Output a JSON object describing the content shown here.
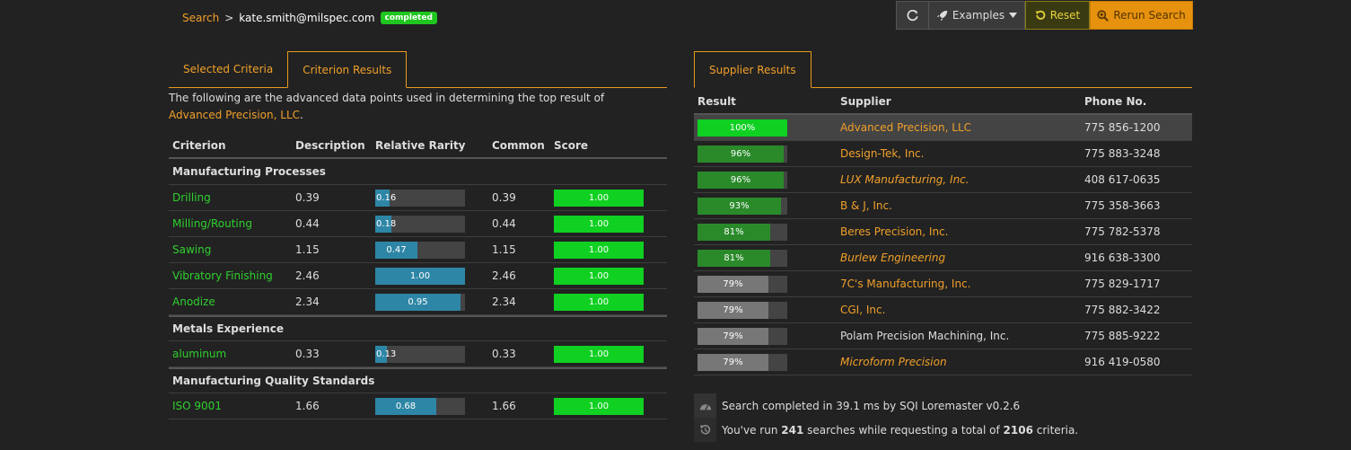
{
  "breadcrumb": {
    "root": "Search",
    "separator": ">",
    "user": "kate.smith@milspec.com",
    "status": "completed"
  },
  "toolbar": {
    "refresh_icon": "refresh-icon",
    "examples_label": "Examples",
    "reset_label": "Reset",
    "rerun_label": "Rerun Search"
  },
  "left_tabs": [
    {
      "label": "Selected Criteria"
    },
    {
      "label": "Criterion Results"
    }
  ],
  "intro": {
    "text": "The following are the advanced data points used in determining the top result of ",
    "highlight": "Advanced Precision, LLC",
    "end": "."
  },
  "criteria": {
    "headers": [
      "Criterion",
      "Description",
      "Relative Rarity",
      "Common",
      "Score"
    ],
    "groups": [
      {
        "name": "Manufacturing Processes",
        "rows": [
          {
            "criterion": "Drilling",
            "description": "0.39",
            "rarity": 0.16,
            "rarity_label": "0.16",
            "common": "0.39",
            "score": "1.00"
          },
          {
            "criterion": "Milling/Routing",
            "description": "0.44",
            "rarity": 0.18,
            "rarity_label": "0.18",
            "common": "0.44",
            "score": "1.00"
          },
          {
            "criterion": "Sawing",
            "description": "1.15",
            "rarity": 0.47,
            "rarity_label": "0.47",
            "common": "1.15",
            "score": "1.00"
          },
          {
            "criterion": "Vibratory Finishing",
            "description": "2.46",
            "rarity": 1.0,
            "rarity_label": "1.00",
            "common": "2.46",
            "score": "1.00"
          },
          {
            "criterion": "Anodize",
            "description": "2.34",
            "rarity": 0.95,
            "rarity_label": "0.95",
            "common": "2.34",
            "score": "1.00"
          }
        ]
      },
      {
        "name": "Metals Experience",
        "rows": [
          {
            "criterion": "aluminum",
            "description": "0.33",
            "rarity": 0.13,
            "rarity_label": "0.13",
            "common": "0.33",
            "score": "1.00"
          }
        ]
      },
      {
        "name": "Manufacturing Quality Standards",
        "rows": [
          {
            "criterion": "ISO 9001",
            "description": "1.66",
            "rarity": 0.68,
            "rarity_label": "0.68",
            "common": "1.66",
            "score": "1.00"
          }
        ]
      }
    ]
  },
  "right_tabs": [
    {
      "label": "Supplier Results"
    }
  ],
  "suppliers": {
    "headers": [
      "Result",
      "Supplier",
      "Phone No."
    ],
    "rows": [
      {
        "result": 100,
        "result_label": "100%",
        "name": "Advanced Precision, LLC",
        "phone": "775 856-1200",
        "color": "#10d022",
        "style": "link",
        "selected": true
      },
      {
        "result": 96,
        "result_label": "96%",
        "name": "Design-Tek, Inc.",
        "phone": "775 883-3248",
        "color": "#2a8a2a",
        "style": "link"
      },
      {
        "result": 96,
        "result_label": "96%",
        "name": "LUX Manufacturing, Inc.",
        "phone": "408 617-0635",
        "color": "#2a8a2a",
        "style": "italic"
      },
      {
        "result": 93,
        "result_label": "93%",
        "name": "B & J, Inc.",
        "phone": "775 358-3663",
        "color": "#2a8a2a",
        "style": "link"
      },
      {
        "result": 81,
        "result_label": "81%",
        "name": "Beres Precision, Inc.",
        "phone": "775 782-5378",
        "color": "#2a8a2a",
        "style": "link"
      },
      {
        "result": 81,
        "result_label": "81%",
        "name": "Burlew Engineering",
        "phone": "916 638-3300",
        "color": "#2a8a2a",
        "style": "italic"
      },
      {
        "result": 79,
        "result_label": "79%",
        "name": "7C's Manufacturing, Inc.",
        "phone": "775 829-1717",
        "color": "#777777",
        "style": "link"
      },
      {
        "result": 79,
        "result_label": "79%",
        "name": "CGI, Inc.",
        "phone": "775 882-3422",
        "color": "#777777",
        "style": "link"
      },
      {
        "result": 79,
        "result_label": "79%",
        "name": "Polam Precision Machining, Inc.",
        "phone": "775 885-9222",
        "color": "#777777",
        "style": "plain"
      },
      {
        "result": 79,
        "result_label": "79%",
        "name": "Microform Precision",
        "phone": "916 419-0580",
        "color": "#777777",
        "style": "italic"
      }
    ]
  },
  "footer": {
    "line1": "Search completed in 39.1 ms by SQI Loremaster v0.2.6",
    "line2_a": "You've run ",
    "searches": "241",
    "line2_b": " searches while requesting a total of ",
    "criteria_total": "2106",
    "line2_c": " criteria."
  }
}
